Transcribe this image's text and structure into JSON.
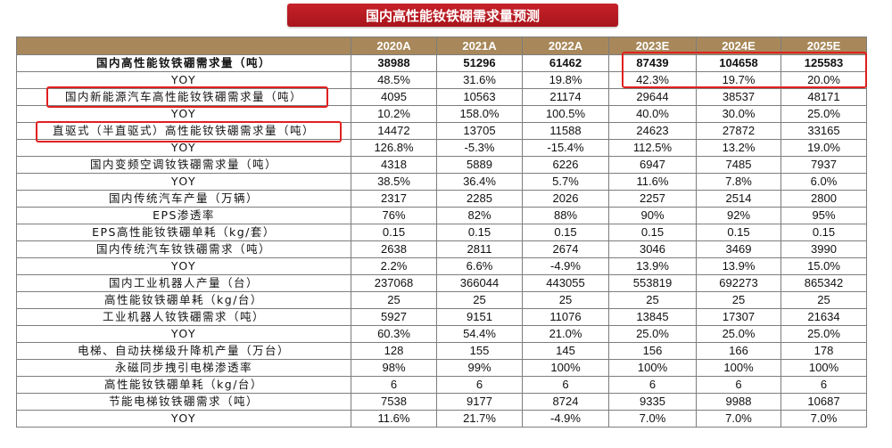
{
  "title": "国内高性能钕铁硼需求量预测",
  "columns": [
    "",
    "2020A",
    "2021A",
    "2022A",
    "2023E",
    "2024E",
    "2025E"
  ],
  "rows": [
    {
      "label": "国内高性能钕铁硼需求量（吨）",
      "values": [
        "38988",
        "51296",
        "61462",
        "87439",
        "104658",
        "125583"
      ],
      "bold": true
    },
    {
      "label": "YOY",
      "values": [
        "48.5%",
        "31.6%",
        "19.8%",
        "42.3%",
        "19.7%",
        "20.0%"
      ]
    },
    {
      "label": "国内新能源汽车高性能钕铁硼需求量（吨）",
      "values": [
        "4095",
        "10563",
        "21174",
        "29644",
        "38537",
        "48171"
      ]
    },
    {
      "label": "YOY",
      "values": [
        "10.2%",
        "158.0%",
        "100.5%",
        "40.0%",
        "30.0%",
        "25.0%"
      ]
    },
    {
      "label": "直驱式（半直驱式）高性能钕铁硼需求量（吨）",
      "values": [
        "14472",
        "13705",
        "11588",
        "24623",
        "27872",
        "33165"
      ]
    },
    {
      "label": "YOY",
      "values": [
        "126.8%",
        "-5.3%",
        "-15.4%",
        "112.5%",
        "13.2%",
        "19.0%"
      ]
    },
    {
      "label": "国内变频空调钕铁硼需求量（吨）",
      "values": [
        "4318",
        "5889",
        "6226",
        "6947",
        "7485",
        "7937"
      ]
    },
    {
      "label": "YOY",
      "values": [
        "38.5%",
        "36.4%",
        "5.7%",
        "11.6%",
        "7.8%",
        "6.0%"
      ]
    },
    {
      "label": "国内传统汽车产量（万辆）",
      "values": [
        "2317",
        "2285",
        "2026",
        "2257",
        "2514",
        "2800"
      ]
    },
    {
      "label": "EPS渗透率",
      "values": [
        "76%",
        "82%",
        "88%",
        "90%",
        "92%",
        "95%"
      ]
    },
    {
      "label": "EPS高性能钕铁硼单耗（kg/套）",
      "values": [
        "0.15",
        "0.15",
        "0.15",
        "0.15",
        "0.15",
        "0.15"
      ]
    },
    {
      "label": "国内传统汽车钕铁硼需求（吨）",
      "values": [
        "2638",
        "2811",
        "2674",
        "3046",
        "3469",
        "3990"
      ]
    },
    {
      "label": "YOY",
      "values": [
        "2.2%",
        "6.6%",
        "-4.9%",
        "13.9%",
        "13.9%",
        "15.0%"
      ]
    },
    {
      "label": "国内工业机器人产量（台）",
      "values": [
        "237068",
        "366044",
        "443055",
        "553819",
        "692273",
        "865342"
      ]
    },
    {
      "label": "高性能钕铁硼单耗（kg/台）",
      "values": [
        "25",
        "25",
        "25",
        "25",
        "25",
        "25"
      ]
    },
    {
      "label": "工业机器人钕铁硼需求（吨）",
      "values": [
        "5927",
        "9151",
        "11076",
        "13845",
        "17307",
        "21634"
      ]
    },
    {
      "label": "YOY",
      "values": [
        "60.3%",
        "54.4%",
        "21.0%",
        "25.0%",
        "25.0%",
        "25.0%"
      ]
    },
    {
      "label": "电梯、自动扶梯级升降机产量（万台）",
      "values": [
        "128",
        "155",
        "145",
        "156",
        "166",
        "178"
      ]
    },
    {
      "label": "永磁同步拽引电梯渗透率",
      "values": [
        "98%",
        "99%",
        "100%",
        "100%",
        "100%",
        "100%"
      ]
    },
    {
      "label": "高性能钕铁硼单耗（kg/台）",
      "values": [
        "6",
        "6",
        "6",
        "6",
        "6",
        "6"
      ]
    },
    {
      "label": "节能电梯钕铁硼需求（吨）",
      "values": [
        "7538",
        "9177",
        "8724",
        "9335",
        "9988",
        "10687"
      ]
    },
    {
      "label": "YOY",
      "values": [
        "11.6%",
        "21.7%",
        "-4.9%",
        "7.0%",
        "7.0%",
        "7.0%"
      ]
    }
  ],
  "highlight_color": "#e02020",
  "header_color": "#a8885a"
}
